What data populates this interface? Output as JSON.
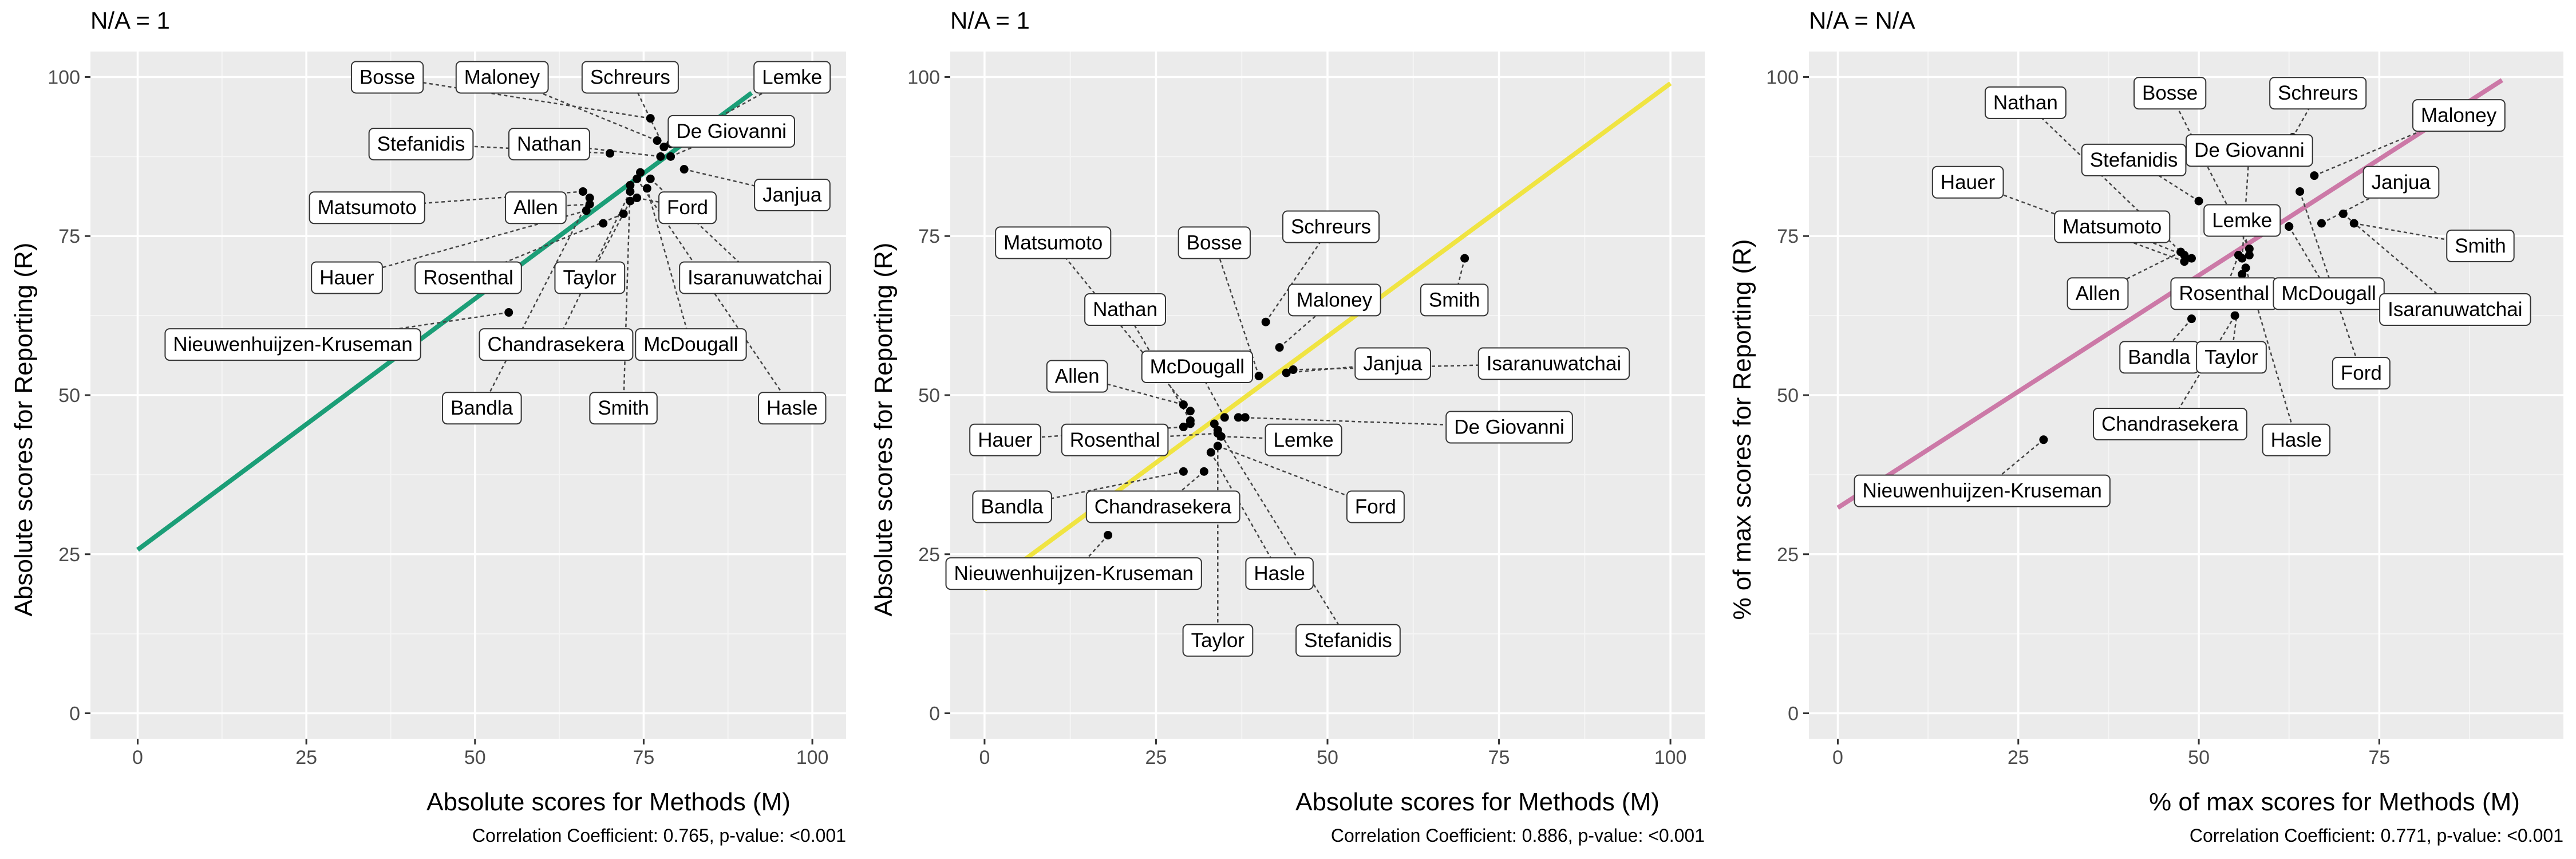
{
  "chart_data": [
    {
      "type": "scatter",
      "title": "N/A = 1",
      "xlabel": "Absolute scores for Methods (M)",
      "ylabel": "Absolute scores for Reporting (R)",
      "caption": "Correlation Coefficient: 0.765, p-value: <0.001",
      "xlim": [
        -7,
        105
      ],
      "ylim": [
        -4,
        104
      ],
      "xticks": [
        "0",
        "25",
        "50",
        "75",
        "100"
      ],
      "yticks": [
        "0",
        "25",
        "50",
        "75",
        "100"
      ],
      "grid": true,
      "regression": {
        "color": "#1b9e77",
        "x": [
          0,
          91
        ],
        "y": [
          25.7,
          97.5
        ]
      },
      "points": [
        {
          "name": "Bosse",
          "x": 76,
          "y": 93.5,
          "lx": 37,
          "ly": 100
        },
        {
          "name": "Maloney",
          "x": 77,
          "y": 90,
          "lx": 54,
          "ly": 100
        },
        {
          "name": "Schreurs",
          "x": 78,
          "y": 89,
          "lx": 73,
          "ly": 100
        },
        {
          "name": "Lemke",
          "x": 79,
          "y": 89.5,
          "lx": 97,
          "ly": 100
        },
        {
          "name": "Stefanidis",
          "x": 70,
          "y": 88,
          "lx": 42,
          "ly": 89.5
        },
        {
          "name": "Nathan",
          "x": 77.5,
          "y": 87.5,
          "lx": 61,
          "ly": 89.5
        },
        {
          "name": "De Giovanni",
          "x": 79,
          "y": 87.5,
          "lx": 88,
          "ly": 91.5
        },
        {
          "name": "Janjua",
          "x": 81,
          "y": 85.5,
          "lx": 97,
          "ly": 81.5
        },
        {
          "name": "Matsumoto",
          "x": 66,
          "y": 82,
          "lx": 34,
          "ly": 79.5
        },
        {
          "name": "Allen",
          "x": 67,
          "y": 80,
          "lx": 59,
          "ly": 79.5
        },
        {
          "name": "Ford",
          "x": 74,
          "y": 81,
          "lx": 81.5,
          "ly": 79.5
        },
        {
          "name": "Hauer",
          "x": 66.5,
          "y": 79,
          "lx": 31,
          "ly": 68.5
        },
        {
          "name": "Rosenthal",
          "x": 72,
          "y": 78.5,
          "lx": 49,
          "ly": 68.5
        },
        {
          "name": "Taylor",
          "x": 73,
          "y": 80.5,
          "lx": 67,
          "ly": 68.5
        },
        {
          "name": "Isaranuwatchai",
          "x": 76,
          "y": 84,
          "lx": 91.5,
          "ly": 68.5
        },
        {
          "name": "Nieuwenhuijzen-Kruseman",
          "x": 55,
          "y": 63,
          "lx": 23,
          "ly": 58
        },
        {
          "name": "Chandrasekera",
          "x": 73,
          "y": 82,
          "lx": 62,
          "ly": 58
        },
        {
          "name": "McDougall",
          "x": 75.5,
          "y": 82.5,
          "lx": 82,
          "ly": 58
        },
        {
          "name": "Bandla",
          "x": 67,
          "y": 81,
          "lx": 51,
          "ly": 48
        },
        {
          "name": "Smith",
          "x": 73,
          "y": 83,
          "lx": 72,
          "ly": 48
        },
        {
          "name": "Hasle",
          "x": 74,
          "y": 84,
          "lx": 97,
          "ly": 48
        },
        {
          "name": "",
          "x": 74.5,
          "y": 85,
          "lx": null,
          "ly": null
        },
        {
          "name": "",
          "x": 69,
          "y": 77,
          "lx": null,
          "ly": null
        }
      ]
    },
    {
      "type": "scatter",
      "title": "N/A = 1",
      "xlabel": "Absolute scores for Methods (M)",
      "ylabel": "Absolute scores for Reporting (R)",
      "caption": "Correlation Coefficient: 0.886, p-value: <0.001",
      "xlim": [
        -5,
        105
      ],
      "ylim": [
        -4,
        104
      ],
      "xticks": [
        "0",
        "25",
        "50",
        "75",
        "100"
      ],
      "yticks": [
        "0",
        "25",
        "50",
        "75",
        "100"
      ],
      "grid": true,
      "regression": {
        "color": "#f0e442",
        "x": [
          0,
          100
        ],
        "y": [
          19.5,
          99
        ]
      },
      "points": [
        {
          "name": "Matsumoto",
          "x": 30,
          "y": 47.5,
          "lx": 10,
          "ly": 74
        },
        {
          "name": "Bosse",
          "x": 40,
          "y": 53,
          "lx": 33.5,
          "ly": 74
        },
        {
          "name": "Schreurs",
          "x": 41,
          "y": 61.5,
          "lx": 50.5,
          "ly": 76.5
        },
        {
          "name": "Nathan",
          "x": 30,
          "y": 46,
          "lx": 20.5,
          "ly": 63.5
        },
        {
          "name": "Maloney",
          "x": 43,
          "y": 57.5,
          "lx": 51,
          "ly": 65
        },
        {
          "name": "Smith",
          "x": 70,
          "y": 71.5,
          "lx": 68.5,
          "ly": 65
        },
        {
          "name": "Allen",
          "x": 29,
          "y": 48.5,
          "lx": 13.5,
          "ly": 53
        },
        {
          "name": "McDougall",
          "x": 35,
          "y": 46.5,
          "lx": 31,
          "ly": 54.5
        },
        {
          "name": "Janjua",
          "x": 44,
          "y": 53.5,
          "lx": 59.5,
          "ly": 55
        },
        {
          "name": "Isaranuwatchai",
          "x": 45,
          "y": 54,
          "lx": 83,
          "ly": 55
        },
        {
          "name": "De Giovanni",
          "x": 37,
          "y": 46.5,
          "lx": 76.5,
          "ly": 45
        },
        {
          "name": "Hauer",
          "x": 29,
          "y": 45,
          "lx": 3,
          "ly": 43
        },
        {
          "name": "Rosenthal",
          "x": 34,
          "y": 44,
          "lx": 19,
          "ly": 43
        },
        {
          "name": "Lemke",
          "x": 34.5,
          "y": 43.5,
          "lx": 46.5,
          "ly": 43
        },
        {
          "name": "Bandla",
          "x": 29,
          "y": 38,
          "lx": 4,
          "ly": 32.5
        },
        {
          "name": "Chandrasekera",
          "x": 32,
          "y": 38,
          "lx": 26,
          "ly": 32.5
        },
        {
          "name": "Ford",
          "x": 34,
          "y": 42,
          "lx": 57,
          "ly": 32.5
        },
        {
          "name": "Nieuwenhuijzen-Kruseman",
          "x": 18,
          "y": 28,
          "lx": 13,
          "ly": 22
        },
        {
          "name": "Hasle",
          "x": 33,
          "y": 41,
          "lx": 43,
          "ly": 22
        },
        {
          "name": "Taylor",
          "x": 34,
          "y": 44.5,
          "lx": 34,
          "ly": 11.5
        },
        {
          "name": "Stefanidis",
          "x": 33.5,
          "y": 45.5,
          "lx": 53,
          "ly": 11.5
        },
        {
          "name": "",
          "x": 38,
          "y": 46.5,
          "lx": null,
          "ly": null
        },
        {
          "name": "",
          "x": 30,
          "y": 45.5,
          "lx": null,
          "ly": null
        }
      ]
    },
    {
      "type": "scatter",
      "title": "N/A = N/A",
      "xlabel": "% of max scores for Methods (M)",
      "ylabel": "% of max scores for Reporting (R)",
      "caption": "Correlation Coefficient: 0.771, p-value: <0.001",
      "xlim": [
        -4,
        100.5
      ],
      "ylim": [
        -4,
        104
      ],
      "xticks": [
        "0",
        "25",
        "50",
        "75"
      ],
      "yticks": [
        "0",
        "25",
        "50",
        "75",
        "100"
      ],
      "grid": true,
      "regression": {
        "color": "#cc79a7",
        "x": [
          0,
          92
        ],
        "y": [
          32.3,
          99.5
        ]
      },
      "points": [
        {
          "name": "Nathan",
          "x": 48,
          "y": 72,
          "lx": 26,
          "ly": 96
        },
        {
          "name": "Bosse",
          "x": 57,
          "y": 73,
          "lx": 46,
          "ly": 97.5
        },
        {
          "name": "Schreurs",
          "x": 63,
          "y": 90.5,
          "lx": 66.5,
          "ly": 97.5
        },
        {
          "name": "Maloney",
          "x": 66,
          "y": 84.5,
          "lx": 86,
          "ly": 94
        },
        {
          "name": "Stefanidis",
          "x": 50,
          "y": 80.5,
          "lx": 41,
          "ly": 87
        },
        {
          "name": "De Giovanni",
          "x": 56,
          "y": 71.5,
          "lx": 57,
          "ly": 88.5
        },
        {
          "name": "Hauer",
          "x": 48,
          "y": 71,
          "lx": 18,
          "ly": 83.5
        },
        {
          "name": "Janjua",
          "x": 67,
          "y": 77,
          "lx": 78,
          "ly": 83.5
        },
        {
          "name": "Matsumoto",
          "x": 49,
          "y": 71.5,
          "lx": 38,
          "ly": 76.5
        },
        {
          "name": "Lemke",
          "x": 57,
          "y": 72,
          "lx": 56,
          "ly": 77.5
        },
        {
          "name": "Smith",
          "x": 71.5,
          "y": 77,
          "lx": 89,
          "ly": 73.5
        },
        {
          "name": "Allen",
          "x": 47.5,
          "y": 72.5,
          "lx": 36,
          "ly": 66
        },
        {
          "name": "Rosenthal",
          "x": 55.5,
          "y": 72,
          "lx": 53.5,
          "ly": 66
        },
        {
          "name": "McDougall",
          "x": 62.5,
          "y": 76.5,
          "lx": 68,
          "ly": 66
        },
        {
          "name": "Isaranuwatchai",
          "x": 70,
          "y": 78.5,
          "lx": 85.5,
          "ly": 63.5
        },
        {
          "name": "Bandla",
          "x": 49,
          "y": 62,
          "lx": 44.5,
          "ly": 56
        },
        {
          "name": "Taylor",
          "x": 56,
          "y": 69,
          "lx": 54.5,
          "ly": 56
        },
        {
          "name": "Ford",
          "x": 64,
          "y": 82,
          "lx": 72.5,
          "ly": 53.5
        },
        {
          "name": "Chandrasekera",
          "x": 55,
          "y": 62.5,
          "lx": 46,
          "ly": 45.5
        },
        {
          "name": "Hasle",
          "x": 56.5,
          "y": 70,
          "lx": 63.5,
          "ly": 43
        },
        {
          "name": "Nieuwenhuijzen-Kruseman",
          "x": 28.5,
          "y": 43,
          "lx": 20,
          "ly": 35
        },
        {
          "name": "",
          "x": 62.5,
          "y": 76.5,
          "lx": null,
          "ly": null
        }
      ]
    }
  ]
}
